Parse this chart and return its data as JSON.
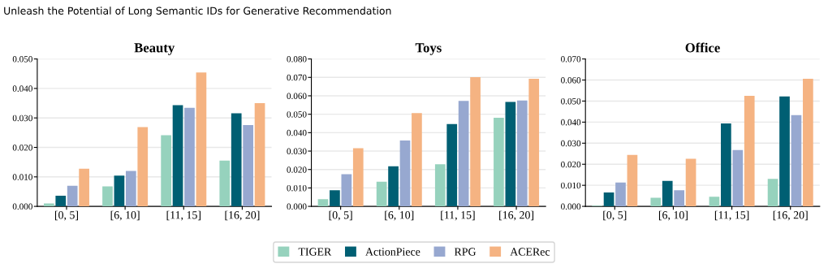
{
  "chart_data": [
    {
      "type": "bar",
      "title": "Beauty",
      "annotations": [
        "Unleash the Potential of Long Semantic IDs for Generative Recommendation"
      ],
      "categories": [
        "[0, 5]",
        "[6, 10]",
        "[11, 15]",
        "[16, 20]"
      ],
      "ylim": [
        0,
        0.05
      ],
      "yticks": [
        {
          "value": 0,
          "label": "0.000"
        },
        {
          "value": 0.01,
          "label": "0.010"
        },
        {
          "value": 0.02,
          "label": "0.020"
        },
        {
          "value": 0.03,
          "label": "0.030"
        },
        {
          "value": 0.04,
          "label": "0.040"
        },
        {
          "value": 0.05,
          "label": "0.050"
        }
      ],
      "grid": "y",
      "legend": "bottom",
      "series": [
        {
          "name": "TIGER",
          "color": "#96d2bd",
          "values": [
            0.001,
            0.0068,
            0.0241,
            0.0155
          ]
        },
        {
          "name": "ActionPiece",
          "color": "#005f73",
          "values": [
            0.0036,
            0.0104,
            0.0343,
            0.0316
          ]
        },
        {
          "name": "RPG",
          "color": "#97a8d0",
          "values": [
            0.007,
            0.012,
            0.0334,
            0.0276
          ]
        },
        {
          "name": "ACERec",
          "color": "#f5b382",
          "values": [
            0.0128,
            0.0269,
            0.0454,
            0.035
          ]
        }
      ]
    },
    {
      "type": "bar",
      "title": "Toys",
      "categories": [
        "[0, 5]",
        "[6, 10]",
        "[11, 15]",
        "[16, 20]"
      ],
      "ylim": [
        0,
        0.08
      ],
      "yticks": [
        {
          "value": 0,
          "label": "0.000"
        },
        {
          "value": 0.01,
          "label": "0.010"
        },
        {
          "value": 0.02,
          "label": "0.020"
        },
        {
          "value": 0.03,
          "label": "0.030"
        },
        {
          "value": 0.04,
          "label": "0.040"
        },
        {
          "value": 0.05,
          "label": "0.050"
        },
        {
          "value": 0.06,
          "label": "0.060"
        },
        {
          "value": 0.07,
          "label": "0.070"
        },
        {
          "value": 0.08,
          "label": "0.080"
        }
      ],
      "grid": "y",
      "series": [
        {
          "color": "#96d2bd",
          "values": [
            0.0039,
            0.0134,
            0.0228,
            0.0481
          ]
        },
        {
          "color": "#005f73",
          "values": [
            0.0087,
            0.0217,
            0.0447,
            0.0567
          ]
        },
        {
          "color": "#97a8d0",
          "values": [
            0.0174,
            0.0357,
            0.0572,
            0.0575
          ]
        },
        {
          "color": "#f5b382",
          "values": [
            0.0316,
            0.0506,
            0.0701,
            0.0692
          ]
        }
      ]
    },
    {
      "type": "bar",
      "title": "Office",
      "categories": [
        "[0, 5]",
        "[6, 10]",
        "[11, 15]",
        "[16, 20]"
      ],
      "ylim": [
        0,
        0.07
      ],
      "yticks": [
        {
          "value": 0,
          "label": "0.000"
        },
        {
          "value": 0.01,
          "label": "0.010"
        },
        {
          "value": 0.02,
          "label": "0.020"
        },
        {
          "value": 0.03,
          "label": "0.030"
        },
        {
          "value": 0.04,
          "label": "0.040"
        },
        {
          "value": 0.05,
          "label": "0.050"
        },
        {
          "value": 0.06,
          "label": "0.060"
        },
        {
          "value": 0.07,
          "label": "0.070"
        }
      ],
      "grid": "y",
      "series": [
        {
          "color": "#96d2bd",
          "values": [
            0.0003,
            0.0041,
            0.0046,
            0.0131
          ]
        },
        {
          "color": "#005f73",
          "values": [
            0.0066,
            0.0121,
            0.0394,
            0.0522
          ]
        },
        {
          "color": "#97a8d0",
          "values": [
            0.0113,
            0.0077,
            0.0267,
            0.0433
          ]
        },
        {
          "color": "#f5b382",
          "values": [
            0.0244,
            0.0226,
            0.0525,
            0.0606
          ]
        }
      ]
    }
  ]
}
